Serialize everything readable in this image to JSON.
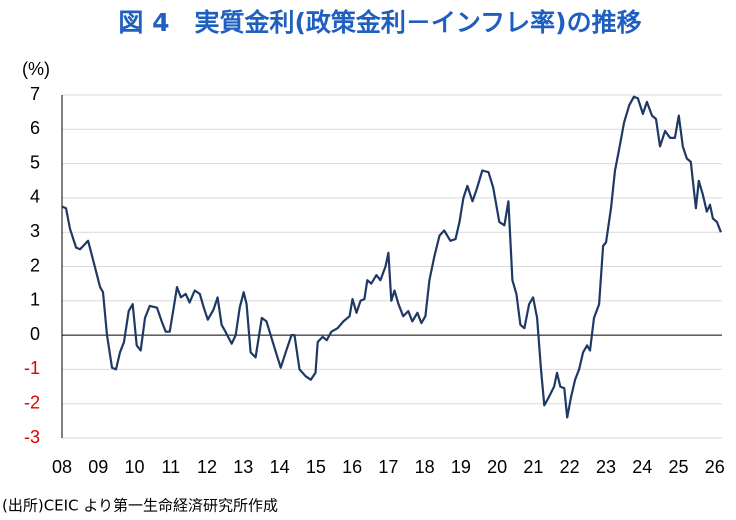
{
  "chart_data": {
    "type": "line",
    "title": "図 4　実質金利(政策金利－インフレ率)の推移",
    "y_label": "(%)",
    "source": "(出所)CEIC より第一生命経済研究所作成",
    "grid": true,
    "negative_tick_color": "#e00000",
    "grid_color": "#d9d9d9",
    "zero_line_color": "#000000",
    "xlim": [
      8,
      26.2
    ],
    "ylim": [
      -3,
      7
    ],
    "yticks": [
      -3,
      -2,
      -1,
      0,
      1,
      2,
      3,
      4,
      5,
      6,
      7
    ],
    "xticks": [
      {
        "value": 8,
        "label": "08"
      },
      {
        "value": 9,
        "label": "09"
      },
      10,
      11,
      12,
      13,
      14,
      15,
      16,
      17,
      18,
      19,
      20,
      21,
      22,
      23,
      24,
      25,
      26
    ],
    "x": [
      8.0,
      8.11,
      8.22,
      8.39,
      8.5,
      8.72,
      8.88,
      9.05,
      9.13,
      9.24,
      9.38,
      9.49,
      9.6,
      9.71,
      9.84,
      9.95,
      10.06,
      10.17,
      10.29,
      10.42,
      10.62,
      10.75,
      10.86,
      10.97,
      11.08,
      11.17,
      11.28,
      11.41,
      11.52,
      11.66,
      11.8,
      11.91,
      12.02,
      12.18,
      12.29,
      12.4,
      12.51,
      12.68,
      12.79,
      12.9,
      13.01,
      13.09,
      13.2,
      13.34,
      13.51,
      13.64,
      13.84,
      14.03,
      14.17,
      14.33,
      14.41,
      14.55,
      14.72,
      14.86,
      14.99,
      15.05,
      15.19,
      15.3,
      15.43,
      15.6,
      15.76,
      15.93,
      16.01,
      16.12,
      16.23,
      16.34,
      16.42,
      16.53,
      16.67,
      16.78,
      16.92,
      17.0,
      17.08,
      17.17,
      17.28,
      17.41,
      17.55,
      17.66,
      17.8,
      17.91,
      18.02,
      18.13,
      18.27,
      18.41,
      18.54,
      18.71,
      18.85,
      18.96,
      19.07,
      19.18,
      19.32,
      19.45,
      19.59,
      19.76,
      19.89,
      20.06,
      20.2,
      20.31,
      20.42,
      20.53,
      20.64,
      20.75,
      20.88,
      20.99,
      21.1,
      21.21,
      21.3,
      21.43,
      21.57,
      21.65,
      21.74,
      21.85,
      21.93,
      22.04,
      22.15,
      22.26,
      22.37,
      22.48,
      22.56,
      22.67,
      22.81,
      22.92,
      23.0,
      23.14,
      23.25,
      23.36,
      23.5,
      23.64,
      23.77,
      23.88,
      24.02,
      24.13,
      24.27,
      24.38,
      24.49,
      24.63,
      24.77,
      24.9,
      25.01,
      25.12,
      25.23,
      25.34,
      25.48,
      25.56,
      25.67,
      25.78,
      25.87,
      25.95,
      26.06,
      26.17
    ],
    "series": [
      {
        "color": "#1f3864",
        "values": [
          3.75,
          3.7,
          3.1,
          2.55,
          2.5,
          2.75,
          2.1,
          1.4,
          1.25,
          0.0,
          -0.95,
          -1.0,
          -0.5,
          -0.2,
          0.7,
          0.9,
          -0.3,
          -0.45,
          0.5,
          0.85,
          0.8,
          0.4,
          0.1,
          0.1,
          0.8,
          1.4,
          1.1,
          1.2,
          0.95,
          1.3,
          1.2,
          0.8,
          0.45,
          0.75,
          1.1,
          0.3,
          0.1,
          -0.25,
          0.0,
          0.8,
          1.25,
          0.9,
          -0.5,
          -0.65,
          0.5,
          0.4,
          -0.3,
          -0.95,
          -0.5,
          0.0,
          0.0,
          -1.0,
          -1.2,
          -1.3,
          -1.1,
          -0.2,
          -0.05,
          -0.15,
          0.1,
          0.2,
          0.4,
          0.55,
          1.05,
          0.65,
          1.0,
          1.05,
          1.6,
          1.5,
          1.75,
          1.6,
          2.0,
          2.4,
          1.0,
          1.3,
          0.9,
          0.55,
          0.7,
          0.4,
          0.65,
          0.35,
          0.55,
          1.6,
          2.3,
          2.9,
          3.05,
          2.75,
          2.8,
          3.3,
          4.0,
          4.35,
          3.9,
          4.3,
          4.8,
          4.75,
          4.3,
          3.3,
          3.2,
          3.9,
          1.6,
          1.2,
          0.3,
          0.2,
          0.9,
          1.1,
          0.5,
          -1.0,
          -2.05,
          -1.8,
          -1.5,
          -1.1,
          -1.5,
          -1.55,
          -2.4,
          -1.8,
          -1.3,
          -1.0,
          -0.5,
          -0.3,
          -0.45,
          0.5,
          0.9,
          2.6,
          2.7,
          3.7,
          4.8,
          5.4,
          6.2,
          6.7,
          6.95,
          6.9,
          6.45,
          6.8,
          6.4,
          6.3,
          5.5,
          5.95,
          5.75,
          5.75,
          6.4,
          5.5,
          5.15,
          5.05,
          3.7,
          4.5,
          4.1,
          3.6,
          3.8,
          3.4,
          3.3,
          3.0
        ]
      }
    ]
  }
}
